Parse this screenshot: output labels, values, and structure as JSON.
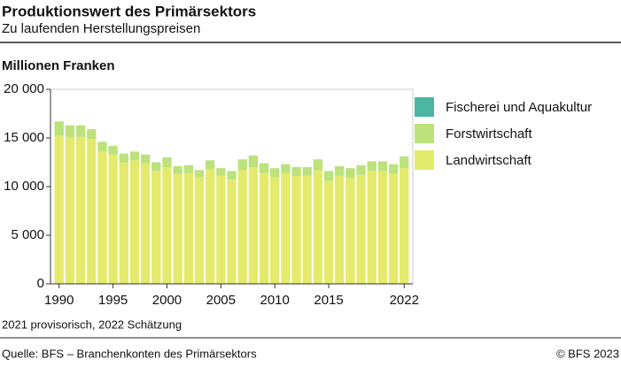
{
  "chart_data": {
    "type": "bar",
    "stacked": true,
    "title": "Produktionswert des Primärsektors",
    "subtitle": "Zu laufenden Herstellungspreisen",
    "y_label": "Millionen Franken",
    "note": "2021 provisorisch, 2022 Schätzung",
    "source": "Quelle: BFS – Branchenkonten des Primärsektors",
    "copyright": "© BFS 2023",
    "x": [
      1990,
      1991,
      1992,
      1993,
      1994,
      1995,
      1996,
      1997,
      1998,
      1999,
      2000,
      2001,
      2002,
      2003,
      2004,
      2005,
      2006,
      2007,
      2008,
      2009,
      2010,
      2011,
      2012,
      2013,
      2014,
      2015,
      2016,
      2017,
      2018,
      2019,
      2020,
      2021,
      2022
    ],
    "xlim": [
      1989.2,
      2022.8
    ],
    "xticks": [
      1990,
      1995,
      2000,
      2005,
      2010,
      2015,
      2022
    ],
    "ylim": [
      0,
      20000
    ],
    "yticks": [
      0,
      {
        "value": 5000,
        "label": "5 000"
      },
      {
        "value": 10000,
        "label": "10 000"
      },
      {
        "value": 15000,
        "label": "15 000"
      },
      {
        "value": 20000,
        "label": "20 000"
      }
    ],
    "series": [
      {
        "name": "Fischerei und Aquakultur",
        "color": "#4db6a0",
        "values": [
          2,
          2,
          2,
          2,
          2,
          2,
          2,
          2,
          2,
          2,
          2,
          2,
          2,
          2,
          2,
          2,
          2,
          2,
          2,
          2,
          2,
          2,
          2,
          2,
          2,
          2,
          2,
          2,
          2,
          2,
          2,
          2,
          2
        ]
      },
      {
        "name": "Forstwirtschaft",
        "color": "#bce27c",
        "values": [
          1500,
          1200,
          1200,
          1000,
          1000,
          900,
          900,
          900,
          900,
          900,
          1000,
          800,
          800,
          700,
          900,
          800,
          900,
          1100,
          1200,
          1000,
          900,
          900,
          900,
          900,
          1100,
          1000,
          1000,
          1000,
          1000,
          1000,
          1000,
          1000,
          1200
        ]
      },
      {
        "name": "Landwirtschaft",
        "color": "#e4ea6c",
        "values": [
          15200,
          15100,
          15100,
          14900,
          13600,
          13300,
          12500,
          12700,
          12400,
          11600,
          12000,
          11300,
          11400,
          11000,
          11800,
          11100,
          10700,
          11700,
          12000,
          11400,
          11000,
          11400,
          11100,
          11100,
          11700,
          10600,
          11100,
          10900,
          11200,
          11600,
          11600,
          11300,
          11900
        ]
      }
    ]
  }
}
